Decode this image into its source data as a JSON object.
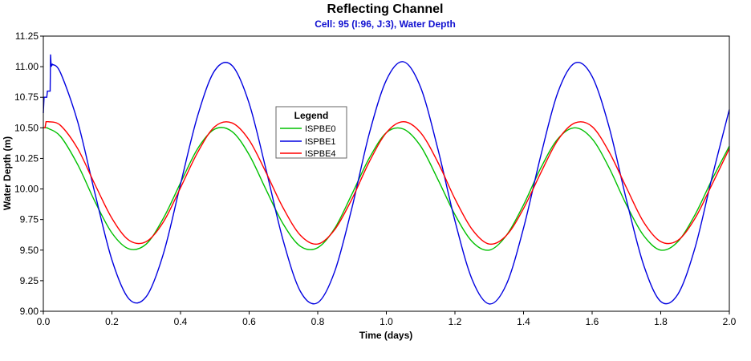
{
  "chart_data": {
    "type": "line",
    "title": "Reflecting Channel",
    "subtitle": "Cell: 95 (I:96, J:3), Water Depth",
    "xlabel": "Time (days)",
    "ylabel": "Water Depth (m)",
    "xlim": [
      0,
      2.0
    ],
    "ylim": [
      9.0,
      11.25
    ],
    "xticks": [
      "0.0",
      "0.2",
      "0.4",
      "0.6",
      "0.8",
      "1.0",
      "1.2",
      "1.4",
      "1.6",
      "1.8",
      "2.0"
    ],
    "yticks": [
      "9.00",
      "9.25",
      "9.50",
      "9.75",
      "10.00",
      "10.25",
      "10.50",
      "10.75",
      "11.00",
      "11.25"
    ],
    "grid": false,
    "legend": {
      "title": "Legend",
      "placement": "center"
    },
    "x": [
      0,
      0.05,
      0.1,
      0.15,
      0.2,
      0.25,
      0.3,
      0.35,
      0.4,
      0.45,
      0.5,
      0.55,
      0.6,
      0.65,
      0.7,
      0.75,
      0.8,
      0.85,
      0.9,
      0.95,
      1.0,
      1.05,
      1.1,
      1.15,
      1.2,
      1.25,
      1.3,
      1.35,
      1.4,
      1.45,
      1.5,
      1.55,
      1.6,
      1.65,
      1.7,
      1.75,
      1.8,
      1.85,
      1.9,
      1.95,
      2.0
    ],
    "series": [
      {
        "name": "ISPBE0",
        "color": "#00c000",
        "startup": [
          [
            0,
            10.5
          ],
          [
            0.01,
            10.5
          ]
        ],
        "values": [
          10.5,
          10.43,
          10.2,
          9.9,
          9.64,
          9.51,
          9.55,
          9.76,
          10.05,
          10.33,
          10.49,
          10.47,
          10.28,
          9.99,
          9.71,
          9.53,
          9.52,
          9.68,
          9.96,
          10.25,
          10.46,
          10.49,
          10.35,
          10.08,
          9.79,
          9.57,
          9.5,
          9.62,
          9.87,
          10.17,
          10.41,
          10.5,
          10.41,
          10.17,
          9.87,
          9.62,
          9.5,
          9.57,
          9.79,
          10.08,
          10.35
        ]
      },
      {
        "name": "ISPBE1",
        "color": "#0000e0",
        "startup": [
          [
            0,
            10.62
          ],
          [
            0.002,
            10.75
          ],
          [
            0.01,
            10.75
          ],
          [
            0.012,
            10.8
          ],
          [
            0.02,
            10.8
          ],
          [
            0.021,
            11.1
          ],
          [
            0.023,
            11.0
          ],
          [
            0.026,
            11.02
          ]
        ],
        "values": [
          11.02,
          10.95,
          10.55,
          9.97,
          9.42,
          9.1,
          9.12,
          9.47,
          10.04,
          10.6,
          10.97,
          11.01,
          10.7,
          10.15,
          9.57,
          9.16,
          9.07,
          9.33,
          9.85,
          10.45,
          10.89,
          11.04,
          10.83,
          10.33,
          9.74,
          9.26,
          9.06,
          9.22,
          9.68,
          10.27,
          10.79,
          11.03,
          10.92,
          10.5,
          9.91,
          9.38,
          9.08,
          9.14,
          9.52,
          10.1,
          10.65
        ]
      },
      {
        "name": "ISPBE4",
        "color": "#ff0000",
        "startup": [
          [
            0,
            10.5
          ],
          [
            0.005,
            10.5
          ],
          [
            0.008,
            10.55
          ],
          [
            0.015,
            10.55
          ]
        ],
        "values": [
          10.54,
          10.52,
          10.33,
          10.04,
          9.76,
          9.58,
          9.57,
          9.73,
          10.01,
          10.3,
          10.51,
          10.54,
          10.4,
          10.13,
          9.84,
          9.62,
          9.55,
          9.67,
          9.92,
          10.22,
          10.46,
          10.55,
          10.46,
          10.22,
          9.92,
          9.67,
          9.55,
          9.62,
          9.84,
          10.13,
          10.4,
          10.54,
          10.51,
          10.3,
          10.01,
          9.73,
          9.57,
          9.58,
          9.76,
          10.04,
          10.33
        ]
      }
    ]
  }
}
